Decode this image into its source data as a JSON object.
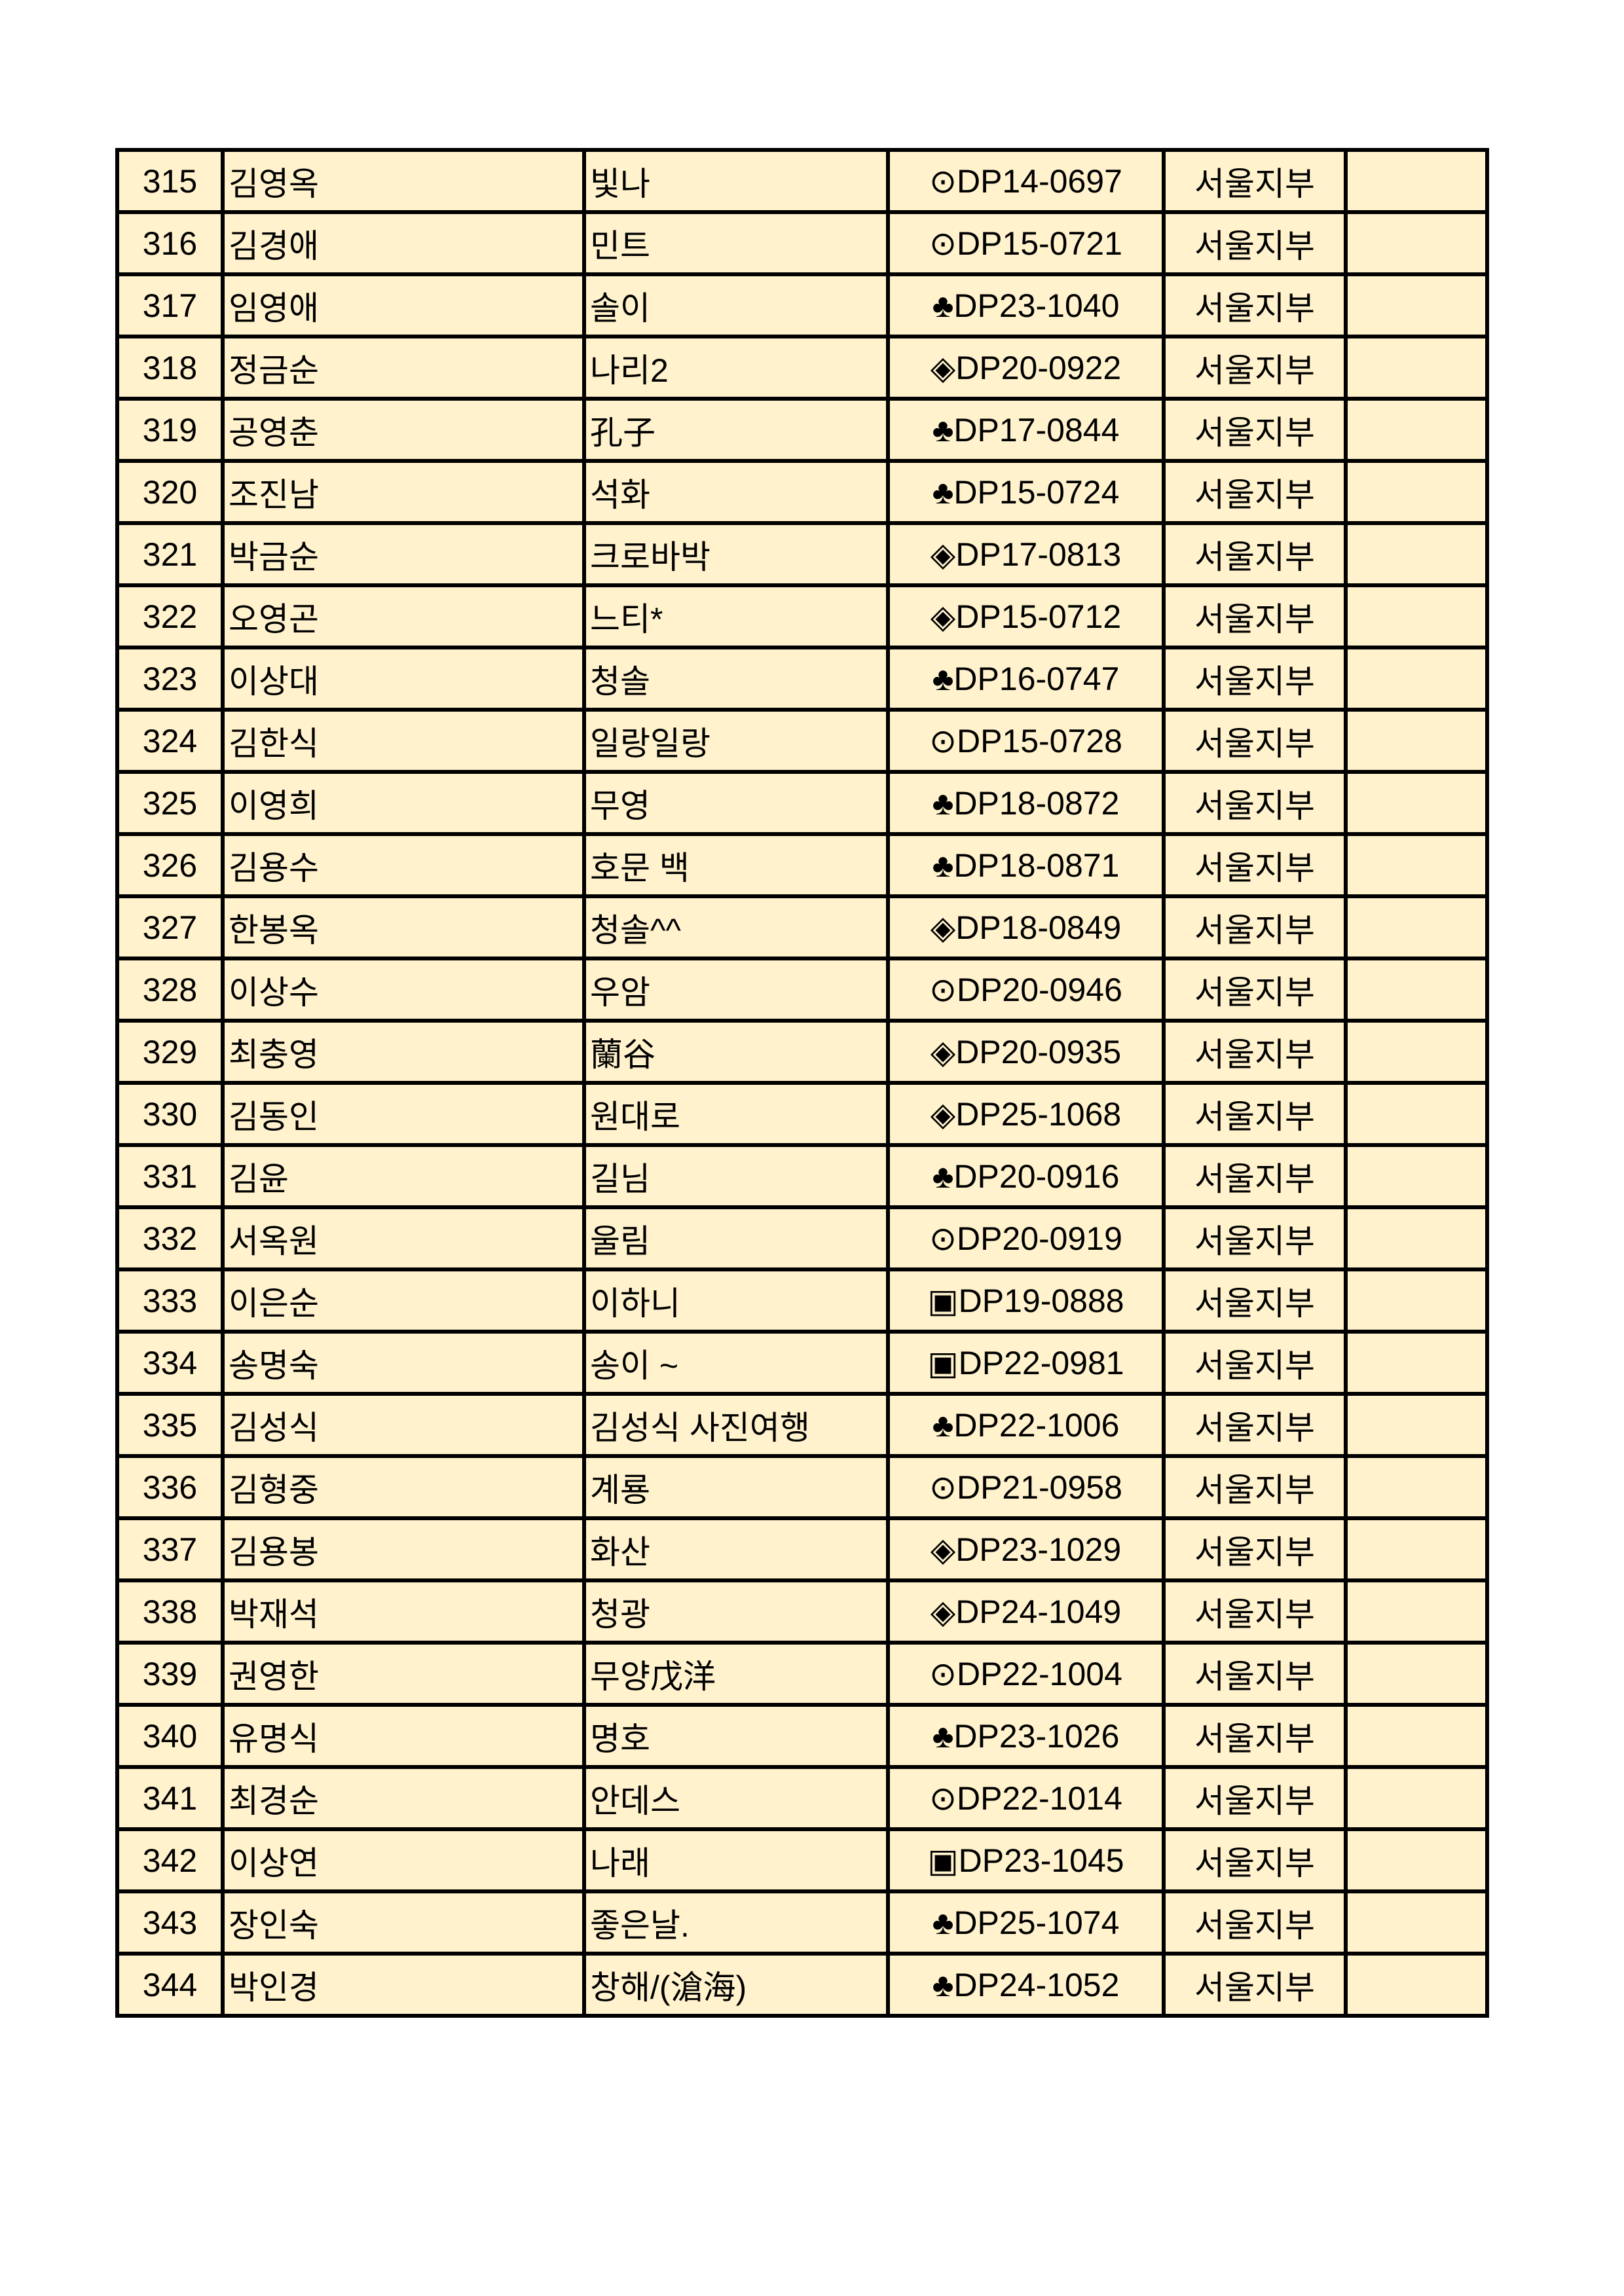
{
  "rows": [
    {
      "no": "315",
      "name": "김영옥",
      "nickname": "빛나",
      "code": "⊙DP14-0697",
      "branch": "서울지부",
      "note": ""
    },
    {
      "no": "316",
      "name": "김경애",
      "nickname": "민트",
      "code": "⊙DP15-0721",
      "branch": "서울지부",
      "note": ""
    },
    {
      "no": "317",
      "name": "임영애",
      "nickname": "솔이",
      "code": "♣DP23-1040",
      "branch": "서울지부",
      "note": ""
    },
    {
      "no": "318",
      "name": "정금순",
      "nickname": "나리2",
      "code": "◈DP20-0922",
      "branch": "서울지부",
      "note": ""
    },
    {
      "no": "319",
      "name": "공영춘",
      "nickname": "孔子",
      "code": "♣DP17-0844",
      "branch": "서울지부",
      "note": ""
    },
    {
      "no": "320",
      "name": "조진남",
      "nickname": "석화",
      "code": "♣DP15-0724",
      "branch": "서울지부",
      "note": ""
    },
    {
      "no": "321",
      "name": "박금순",
      "nickname": "크로바박",
      "code": "◈DP17-0813",
      "branch": "서울지부",
      "note": ""
    },
    {
      "no": "322",
      "name": "오영곤",
      "nickname": "느티*",
      "code": "◈DP15-0712",
      "branch": "서울지부",
      "note": ""
    },
    {
      "no": "323",
      "name": "이상대",
      "nickname": "청솔",
      "code": "♣DP16-0747",
      "branch": "서울지부",
      "note": ""
    },
    {
      "no": "324",
      "name": "김한식",
      "nickname": "일랑일랑",
      "code": "⊙DP15-0728",
      "branch": "서울지부",
      "note": ""
    },
    {
      "no": "325",
      "name": "이영희",
      "nickname": "무영",
      "code": "♣DP18-0872",
      "branch": "서울지부",
      "note": ""
    },
    {
      "no": "326",
      "name": "김용수",
      "nickname": "호문 백",
      "code": "♣DP18-0871",
      "branch": "서울지부",
      "note": ""
    },
    {
      "no": "327",
      "name": "한봉옥",
      "nickname": "청솔^^",
      "code": "◈DP18-0849",
      "branch": "서울지부",
      "note": ""
    },
    {
      "no": "328",
      "name": "이상수",
      "nickname": "우암",
      "code": "⊙DP20-0946",
      "branch": "서울지부",
      "note": ""
    },
    {
      "no": "329",
      "name": "최충영",
      "nickname": "蘭谷",
      "code": "◈DP20-0935",
      "branch": "서울지부",
      "note": ""
    },
    {
      "no": "330",
      "name": "김동인",
      "nickname": "원대로",
      "code": "◈DP25-1068",
      "branch": "서울지부",
      "note": ""
    },
    {
      "no": "331",
      "name": "김윤",
      "nickname": "길님",
      "code": "♣DP20-0916",
      "branch": "서울지부",
      "note": ""
    },
    {
      "no": "332",
      "name": "서옥원",
      "nickname": "울림",
      "code": "⊙DP20-0919",
      "branch": "서울지부",
      "note": ""
    },
    {
      "no": "333",
      "name": "이은순",
      "nickname": "이하니",
      "code": "▣DP19-0888",
      "branch": "서울지부",
      "note": ""
    },
    {
      "no": "334",
      "name": "송명숙",
      "nickname": "송이 ~",
      "code": "▣DP22-0981",
      "branch": "서울지부",
      "note": ""
    },
    {
      "no": "335",
      "name": "김성식",
      "nickname": "김성식 사진여행",
      "code": "♣DP22-1006",
      "branch": "서울지부",
      "note": ""
    },
    {
      "no": "336",
      "name": "김형중",
      "nickname": "계룡",
      "code": "⊙DP21-0958",
      "branch": "서울지부",
      "note": ""
    },
    {
      "no": "337",
      "name": "김용봉",
      "nickname": "화산",
      "code": "◈DP23-1029",
      "branch": "서울지부",
      "note": ""
    },
    {
      "no": "338",
      "name": "박재석",
      "nickname": "청광",
      "code": "◈DP24-1049",
      "branch": "서울지부",
      "note": ""
    },
    {
      "no": "339",
      "name": "권영한",
      "nickname": "무양戊洋",
      "code": "⊙DP22-1004",
      "branch": "서울지부",
      "note": ""
    },
    {
      "no": "340",
      "name": "유명식",
      "nickname": "명호",
      "code": "♣DP23-1026",
      "branch": "서울지부",
      "note": ""
    },
    {
      "no": "341",
      "name": "최경순",
      "nickname": "안데스",
      "code": "⊙DP22-1014",
      "branch": "서울지부",
      "note": ""
    },
    {
      "no": "342",
      "name": "이상연",
      "nickname": "나래",
      "code": "▣DP23-1045",
      "branch": "서울지부",
      "note": ""
    },
    {
      "no": "343",
      "name": "장인숙",
      "nickname": "좋은날.",
      "code": "♣DP25-1074",
      "branch": "서울지부",
      "note": ""
    },
    {
      "no": "344",
      "name": "박인경",
      "nickname": "창해/(滄海)",
      "code": "♣DP24-1052",
      "branch": "서울지부",
      "note": ""
    }
  ],
  "colors": {
    "cell_background": "#fff2cc",
    "border": "#000000"
  }
}
